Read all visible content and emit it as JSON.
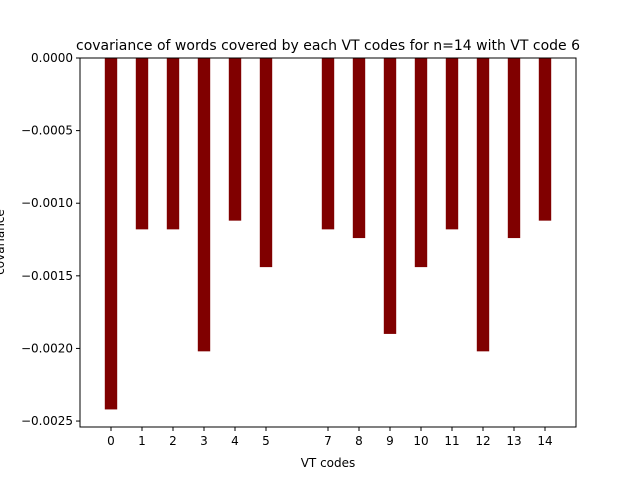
{
  "chart_data": {
    "type": "bar",
    "title": "covariance of words covered by each VT codes for n=14 with VT code 6",
    "xlabel": "VT codes",
    "ylabel": "covariance",
    "categories": [
      0,
      1,
      2,
      3,
      4,
      5,
      7,
      8,
      9,
      10,
      11,
      12,
      13,
      14
    ],
    "values": [
      -0.00242,
      -0.00118,
      -0.00118,
      -0.00202,
      -0.00112,
      -0.00144,
      -0.00118,
      -0.00124,
      -0.0019,
      -0.00144,
      -0.00118,
      -0.00202,
      -0.00124,
      -0.00112
    ],
    "bar_color": "#800000",
    "xlim": [
      -1,
      15
    ],
    "ylim": [
      -0.002541,
      0
    ],
    "yticks": [
      0,
      -0.0005,
      -0.001,
      -0.0015,
      -0.002,
      -0.0025
    ],
    "ytick_labels": [
      "0.0000",
      "−0.0005",
      "−0.0010",
      "−0.0015",
      "−0.0020",
      "−0.0025"
    ],
    "grid": false,
    "legend": "none"
  }
}
